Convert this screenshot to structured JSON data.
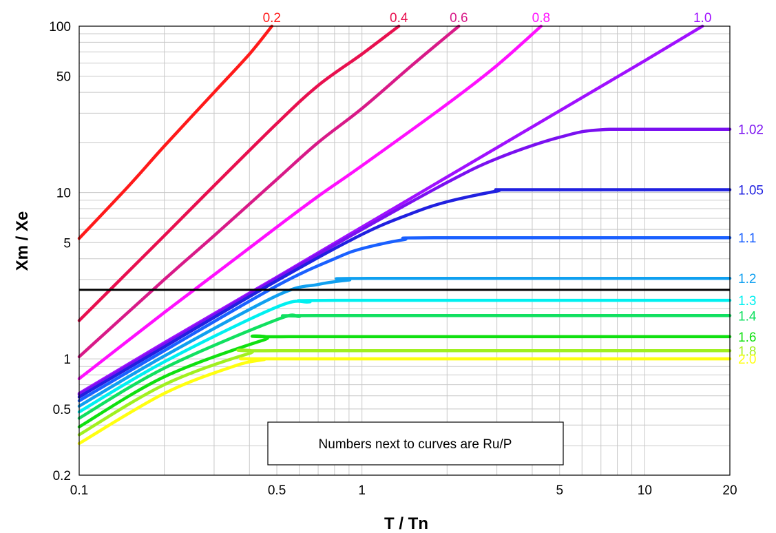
{
  "chart_data": {
    "type": "line",
    "x_scale": "log",
    "y_scale": "log",
    "xlim": [
      0.1,
      20
    ],
    "ylim": [
      0.2,
      100
    ],
    "xlabel": "T / Tn",
    "ylabel": "Xm / Xe",
    "x_ticks": [
      0.1,
      0.5,
      1,
      5,
      10,
      20
    ],
    "x_tick_labels": [
      "0.1",
      "0.5",
      "1",
      "5",
      "10",
      "20"
    ],
    "y_ticks": [
      0.2,
      0.5,
      1,
      5,
      10,
      50,
      100
    ],
    "y_tick_labels": [
      "0.2",
      "0.5",
      "1",
      "5",
      "10",
      "50",
      "100"
    ],
    "grid": true,
    "annotation": "Numbers next to curves are Ru/P",
    "reference_line": {
      "y": 2.6,
      "color": "#000000"
    },
    "series": [
      {
        "name": "0.2",
        "color": "#ff1a1a",
        "label_position": "top",
        "points": [
          [
            0.1,
            5.3
          ],
          [
            0.15,
            11
          ],
          [
            0.2,
            19
          ],
          [
            0.3,
            40
          ],
          [
            0.4,
            68
          ],
          [
            0.48,
            100
          ]
        ]
      },
      {
        "name": "0.4",
        "color": "#e8104f",
        "label_position": "top",
        "points": [
          [
            0.1,
            1.7
          ],
          [
            0.2,
            5.5
          ],
          [
            0.3,
            11
          ],
          [
            0.5,
            26
          ],
          [
            0.7,
            44
          ],
          [
            1,
            68
          ],
          [
            1.35,
            100
          ]
        ]
      },
      {
        "name": "0.6",
        "color": "#d81a88",
        "label_position": "top",
        "points": [
          [
            0.1,
            1.03
          ],
          [
            0.2,
            3.0
          ],
          [
            0.3,
            5.5
          ],
          [
            0.5,
            12
          ],
          [
            0.7,
            20
          ],
          [
            1,
            32
          ],
          [
            1.5,
            58
          ],
          [
            2.2,
            100
          ]
        ]
      },
      {
        "name": "0.8",
        "color": "#ff10ff",
        "label_position": "top",
        "points": [
          [
            0.1,
            0.76
          ],
          [
            0.2,
            1.9
          ],
          [
            0.3,
            3.2
          ],
          [
            0.5,
            6.2
          ],
          [
            0.7,
            9.5
          ],
          [
            1,
            14.5
          ],
          [
            2,
            34
          ],
          [
            3,
            58
          ],
          [
            4.3,
            100
          ]
        ]
      },
      {
        "name": "1.0",
        "color": "#a010ff",
        "label_position": "top",
        "points": [
          [
            0.1,
            0.62
          ],
          [
            0.2,
            1.25
          ],
          [
            0.5,
            3.1
          ],
          [
            1,
            6.2
          ],
          [
            2,
            12.4
          ],
          [
            5,
            31
          ],
          [
            10,
            62
          ],
          [
            16,
            100
          ]
        ]
      },
      {
        "name": "1.02",
        "color": "#7a10f0",
        "label_position": "right",
        "points": [
          [
            0.1,
            0.61
          ],
          [
            0.2,
            1.22
          ],
          [
            0.5,
            3.05
          ],
          [
            1,
            6.0
          ],
          [
            2,
            11.5
          ],
          [
            3,
            16
          ],
          [
            5,
            21.5
          ],
          [
            7.5,
            24
          ],
          [
            20,
            24
          ]
        ]
      },
      {
        "name": "1.05",
        "color": "#2020e0",
        "label_position": "right",
        "points": [
          [
            0.1,
            0.59
          ],
          [
            0.2,
            1.18
          ],
          [
            0.5,
            2.95
          ],
          [
            1,
            5.6
          ],
          [
            1.5,
            7.5
          ],
          [
            2,
            8.8
          ],
          [
            3,
            10.2
          ],
          [
            3.5,
            10.4
          ],
          [
            20,
            10.4
          ]
        ]
      },
      {
        "name": "1.1",
        "color": "#1a60ff",
        "label_position": "right",
        "points": [
          [
            0.1,
            0.56
          ],
          [
            0.2,
            1.12
          ],
          [
            0.5,
            2.75
          ],
          [
            0.8,
            4.0
          ],
          [
            1,
            4.6
          ],
          [
            1.4,
            5.2
          ],
          [
            1.8,
            5.35
          ],
          [
            20,
            5.35
          ]
        ]
      },
      {
        "name": "1.2",
        "color": "#10a0f0",
        "label_position": "right",
        "points": [
          [
            0.1,
            0.52
          ],
          [
            0.2,
            1.04
          ],
          [
            0.5,
            2.4
          ],
          [
            0.7,
            2.8
          ],
          [
            0.9,
            2.98
          ],
          [
            1.05,
            3.05
          ],
          [
            20,
            3.05
          ]
        ]
      },
      {
        "name": "1.3",
        "color": "#00f0f0",
        "label_position": "right",
        "points": [
          [
            0.1,
            0.48
          ],
          [
            0.2,
            0.96
          ],
          [
            0.5,
            2.05
          ],
          [
            0.65,
            2.2
          ],
          [
            0.8,
            2.25
          ],
          [
            20,
            2.25
          ]
        ]
      },
      {
        "name": "1.4",
        "color": "#10e060",
        "label_position": "right",
        "points": [
          [
            0.1,
            0.44
          ],
          [
            0.2,
            0.88
          ],
          [
            0.5,
            1.72
          ],
          [
            0.6,
            1.8
          ],
          [
            0.7,
            1.82
          ],
          [
            20,
            1.82
          ]
        ]
      },
      {
        "name": "1.6",
        "color": "#10e010",
        "label_position": "right",
        "points": [
          [
            0.1,
            0.39
          ],
          [
            0.2,
            0.78
          ],
          [
            0.45,
            1.3
          ],
          [
            0.55,
            1.36
          ],
          [
            20,
            1.36
          ]
        ]
      },
      {
        "name": "1.8",
        "color": "#a0f020",
        "label_position": "right",
        "points": [
          [
            0.1,
            0.35
          ],
          [
            0.2,
            0.7
          ],
          [
            0.4,
            1.08
          ],
          [
            0.5,
            1.12
          ],
          [
            20,
            1.12
          ]
        ]
      },
      {
        "name": "2.0",
        "color": "#ffff10",
        "label_position": "right",
        "points": [
          [
            0.1,
            0.31
          ],
          [
            0.2,
            0.62
          ],
          [
            0.35,
            0.9
          ],
          [
            0.45,
            0.99
          ],
          [
            0.5,
            1.0
          ],
          [
            20,
            1.0
          ]
        ]
      }
    ]
  }
}
